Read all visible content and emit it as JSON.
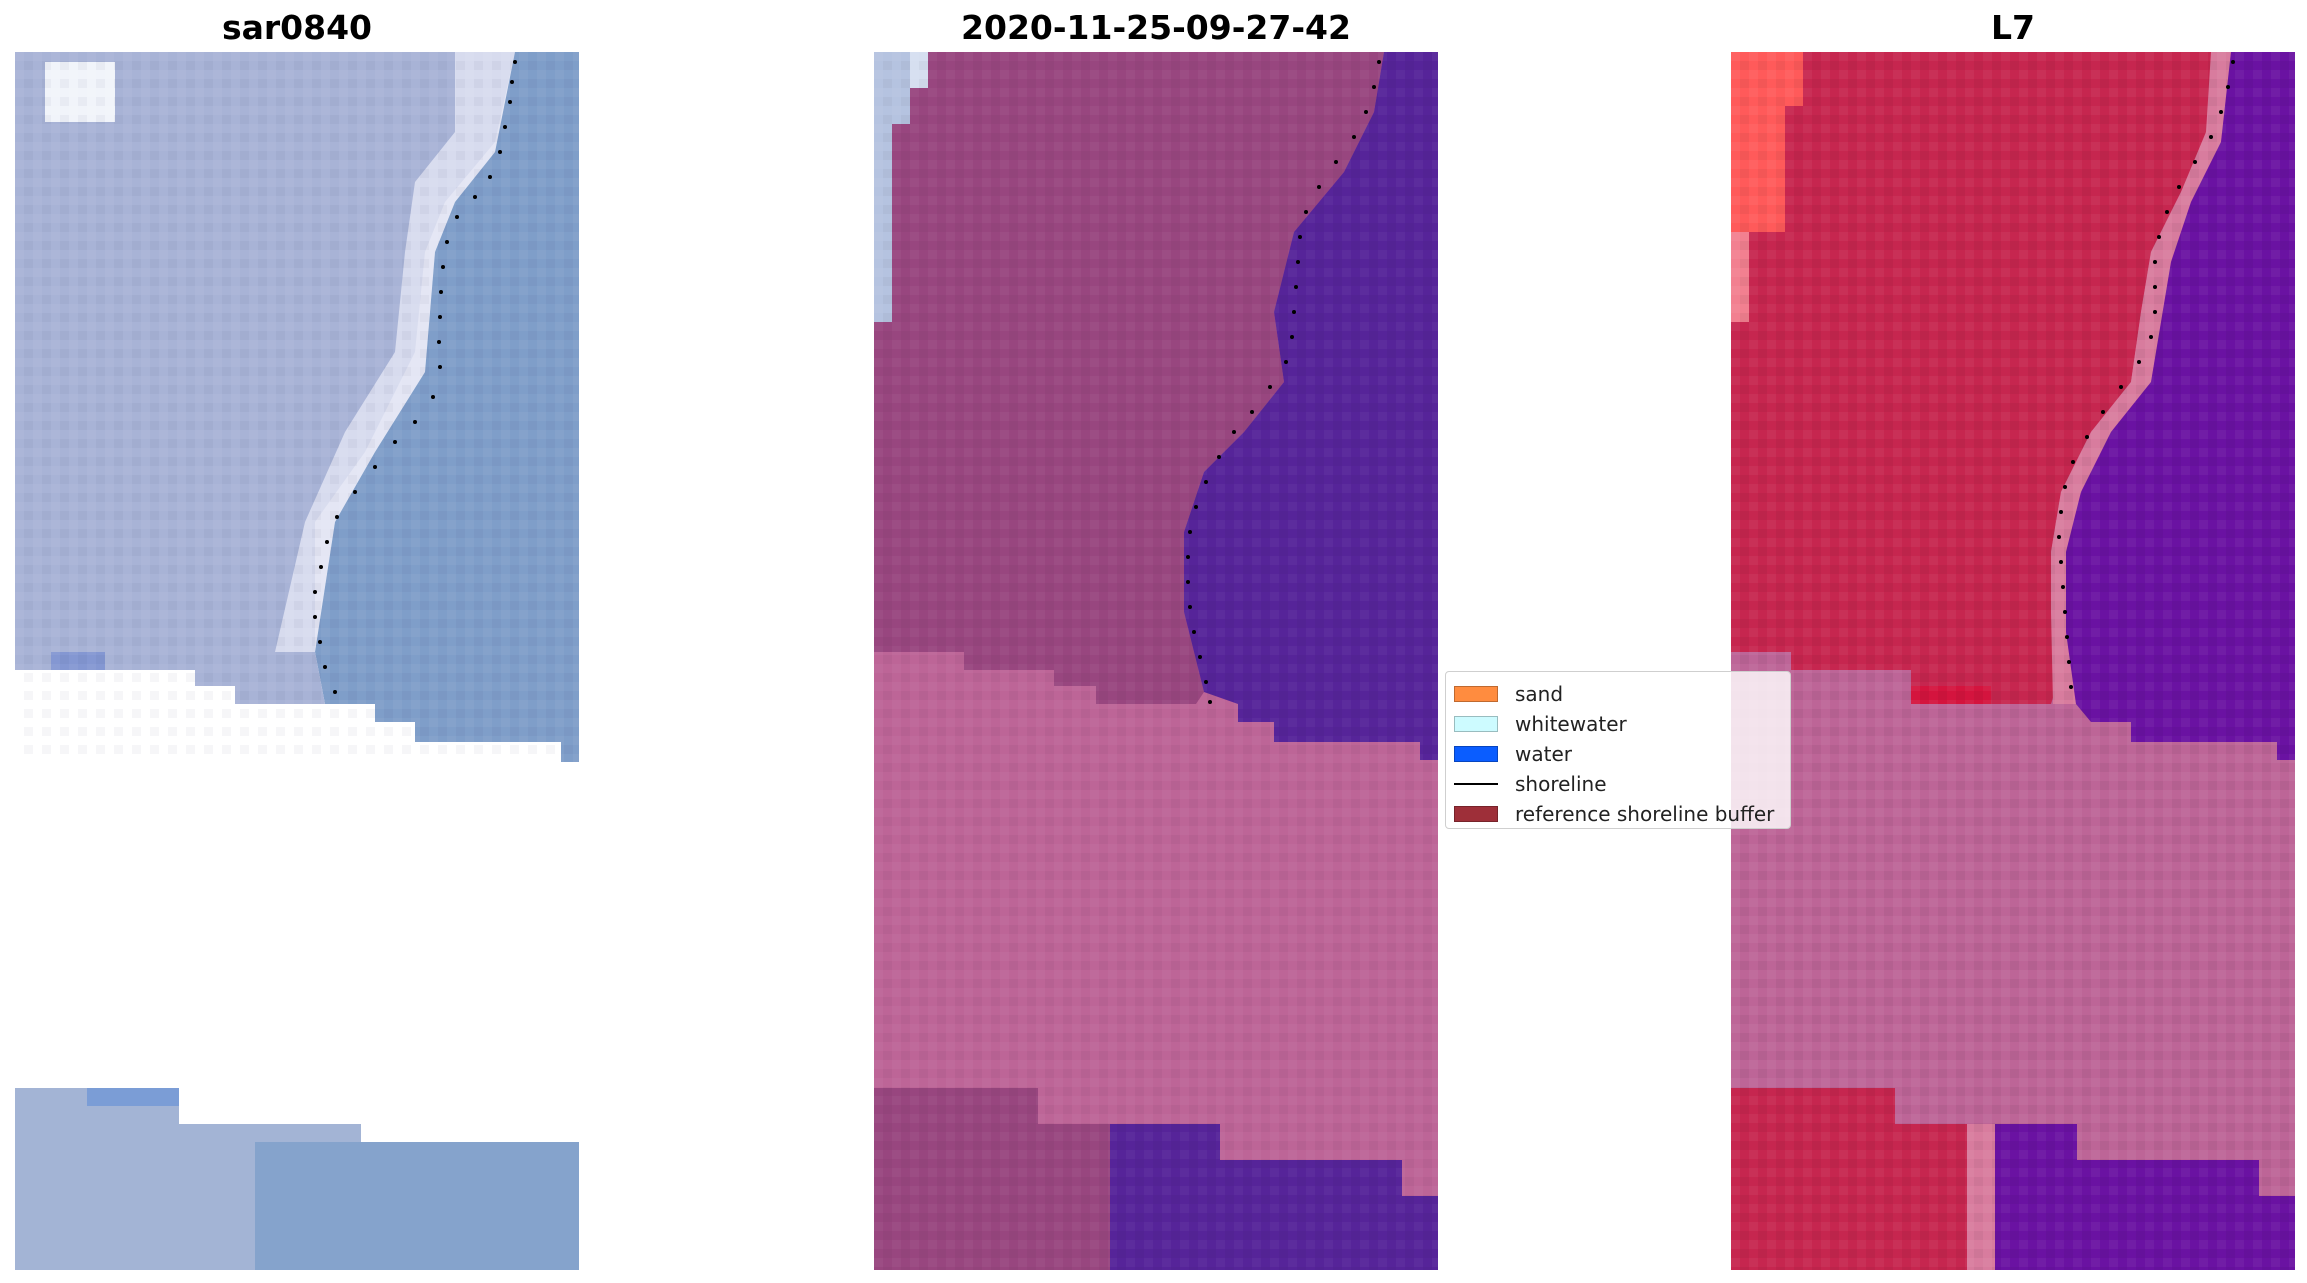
{
  "titles": {
    "left": "sar0840",
    "middle": "2020-11-25-09-27-42",
    "right": "L7"
  },
  "legend": {
    "items": [
      {
        "label": "sand",
        "color": "#ff8c3f",
        "kind": "patch"
      },
      {
        "label": "whitewater",
        "color": "#cdfbff",
        "kind": "patch"
      },
      {
        "label": "water",
        "color": "#0a5dff",
        "kind": "patch"
      },
      {
        "label": "shoreline",
        "color": "#000000",
        "kind": "line"
      },
      {
        "label": "reference shoreline buffer",
        "color": "#9e2f39",
        "kind": "patch"
      }
    ]
  },
  "colors": {
    "rgb_land": "#a8b3d6",
    "rgb_bright": "#dfe2f2",
    "rgb_water": "#7f9ec9",
    "class_land": "#98467f",
    "class_water": "#562499",
    "class_white": "#b5c3e0",
    "buffer": "#bd6597",
    "nir_land": "#c6264f",
    "nir_bright": "#ff5a5a",
    "nir_water": "#6a12a2",
    "shoreline_dots": "#000000"
  }
}
